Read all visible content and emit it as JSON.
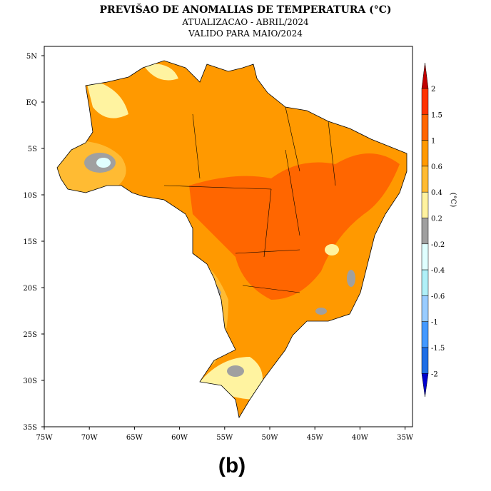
{
  "header": {
    "title": "PREVIŠAO DE ANOMALIAS DE TEMPERATURA (°C)",
    "update": "ATUALIZACAO - ABRIL/2024",
    "validity": "VALIDO PARA MAIO/2024"
  },
  "map": {
    "lat_labels": [
      "5N",
      "EQ",
      "5S",
      "10S",
      "15S",
      "20S",
      "25S",
      "30S",
      "35S"
    ],
    "lon_labels": [
      "75W",
      "70W",
      "65W",
      "60W",
      "55W",
      "50W",
      "45W",
      "40W",
      "35W"
    ],
    "region": "Brazil"
  },
  "colorbar": {
    "unit": "(°C)",
    "ticks": [
      "2",
      "1.5",
      "1",
      "0.6",
      "0.4",
      "0.2",
      "-0.2",
      "-0.4",
      "-0.6",
      "-1",
      "-1.5",
      "-2"
    ],
    "colors": [
      "#c00000",
      "#ff3300",
      "#ff6600",
      "#ff9900",
      "#ffbb33",
      "#fff3a0",
      "#a0a0a0",
      "#e0ffff",
      "#b0f0f8",
      "#99ccff",
      "#4499ff",
      "#1e6ee6",
      "#0000cc"
    ]
  },
  "caption": "(b)"
}
